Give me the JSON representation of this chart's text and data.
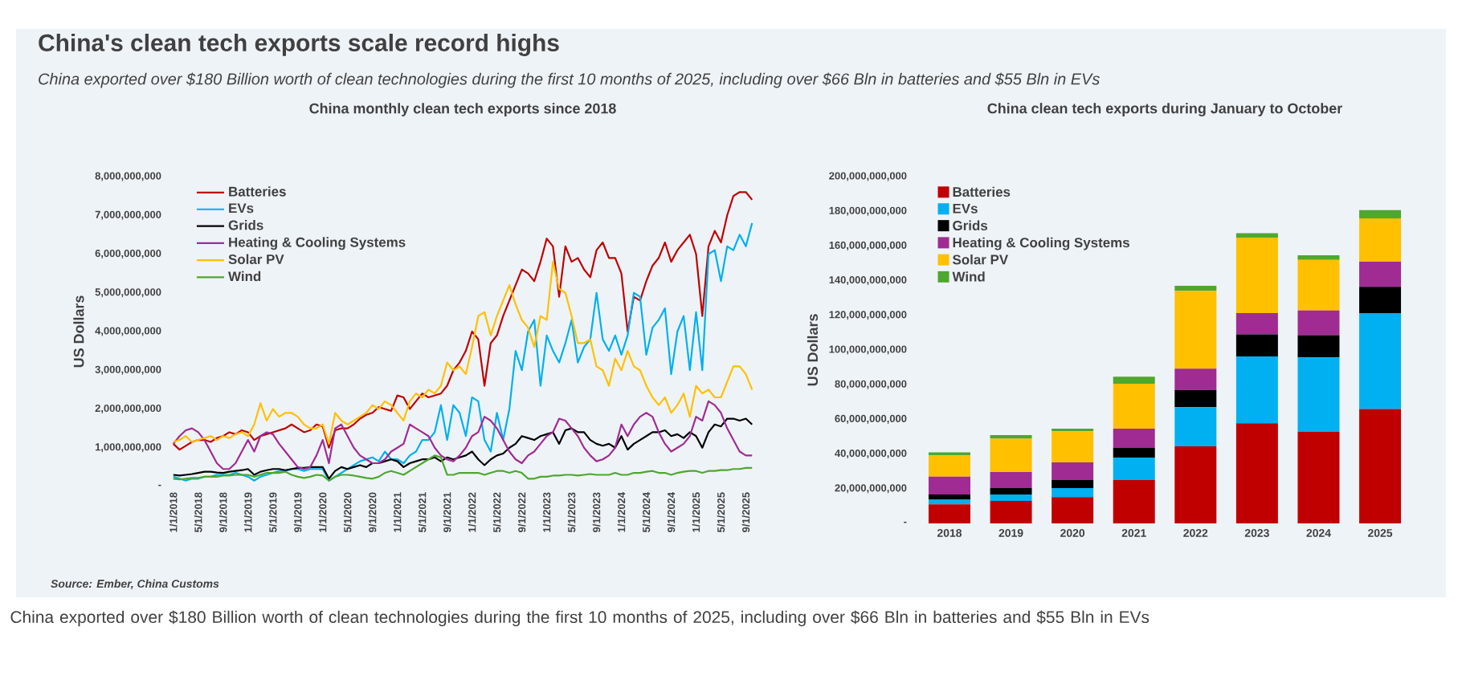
{
  "chart_data": [
    {
      "type": "line",
      "title": "China monthly clean tech exports since 2018",
      "ylabel": "US Dollars",
      "marker": "none",
      "legend": "top left",
      "annotations": [
        "China's clean tech exports scale record highs",
        "China exported over $180 Billion worth of clean technologies during the first 10 months of 2025, including over $66 Bln in batteries and $55 Bln in EVs",
        "Source:  Ember, China Customs",
        "China exported over $180 Billion worth of clean technologies during the first 10 months of 2025, including over $66 Bln in batteries and $55 Bln in EVs"
      ],
      "categories": [
        "1/1/2018",
        null,
        null,
        null,
        "5/1/2018",
        null,
        null,
        null,
        "9/1/2018",
        null,
        null,
        null,
        "1/1/2019",
        null,
        null,
        null,
        "5/1/2019",
        null,
        null,
        null,
        "9/1/2019",
        null,
        null,
        null,
        "1/1/2020",
        null,
        null,
        null,
        "5/1/2020",
        null,
        null,
        null,
        "9/1/2020",
        null,
        null,
        null,
        "1/1/2021",
        null,
        null,
        null,
        "5/1/2021",
        null,
        null,
        null,
        "9/1/2021",
        null,
        null,
        null,
        "1/1/2022",
        null,
        null,
        null,
        "5/1/2022",
        null,
        null,
        null,
        "9/1/2022",
        null,
        null,
        null,
        "1/1/2023",
        null,
        null,
        null,
        "5/1/2023",
        null,
        null,
        null,
        "9/1/2023",
        null,
        null,
        null,
        "1/1/2024",
        null,
        null,
        null,
        "5/1/2024",
        null,
        null,
        null,
        "9/1/2024",
        null,
        null,
        null,
        "1/1/2025",
        null,
        null,
        null,
        "5/1/2025",
        null,
        null,
        null,
        "9/1/2025",
        null
      ],
      "ylim": [
        0,
        8000000000.0
      ],
      "yticks": [
        {
          "value": 0,
          "label": "-"
        },
        {
          "value": 1000000000.0,
          "label": "1,000,000,000"
        },
        {
          "value": 2000000000.0,
          "label": "2,000,000,000"
        },
        {
          "value": 3000000000.0,
          "label": "3,000,000,000"
        },
        {
          "value": 4000000000.0,
          "label": "4,000,000,000"
        },
        {
          "value": 5000000000.0,
          "label": "5,000,000,000"
        },
        {
          "value": 6000000000.0,
          "label": "6,000,000,000"
        },
        {
          "value": 7000000000.0,
          "label": "7,000,000,000"
        },
        {
          "value": 8000000000.0,
          "label": "8,000,000,000"
        }
      ],
      "series": [
        {
          "name": "Batteries",
          "color": "#c00000",
          "values": [
            1100000000.0,
            950000000.0,
            1050000000.0,
            1150000000.0,
            1200000000.0,
            1200000000.0,
            1150000000.0,
            1250000000.0,
            1300000000.0,
            1400000000.0,
            1350000000.0,
            1450000000.0,
            1400000000.0,
            1200000000.0,
            1300000000.0,
            1350000000.0,
            1400000000.0,
            1450000000.0,
            1500000000.0,
            1600000000.0,
            1500000000.0,
            1400000000.0,
            1450000000.0,
            1600000000.0,
            1550000000.0,
            1000000000.0,
            1450000000.0,
            1500000000.0,
            1500000000.0,
            1600000000.0,
            1750000000.0,
            1850000000.0,
            1900000000.0,
            2050000000.0,
            2000000000.0,
            1950000000.0,
            2350000000.0,
            2300000000.0,
            2000000000.0,
            2200000000.0,
            2400000000.0,
            2300000000.0,
            2350000000.0,
            2400000000.0,
            2600000000.0,
            3000000000.0,
            3200000000.0,
            3500000000.0,
            4000000000.0,
            3800000000.0,
            2600000000.0,
            3700000000.0,
            3900000000.0,
            4400000000.0,
            4800000000.0,
            5200000000.0,
            5600000000.0,
            5500000000.0,
            5300000000.0,
            5800000000.0,
            6400000000.0,
            6200000000.0,
            4900000000.0,
            6200000000.0,
            5800000000.0,
            5900000000.0,
            5600000000.0,
            5400000000.0,
            6100000000.0,
            6300000000.0,
            5900000000.0,
            5900000000.0,
            5500000000.0,
            4000000000.0,
            4900000000.0,
            4800000000.0,
            5300000000.0,
            5700000000.0,
            5900000000.0,
            6300000000.0,
            5800000000.0,
            6100000000.0,
            6300000000.0,
            6500000000.0,
            6000000000.0,
            4400000000.0,
            6200000000.0,
            6600000000.0,
            6300000000.0,
            7000000000.0,
            7500000000.0,
            7600000000.0,
            7600000000.0,
            7400000000.0
          ]
        },
        {
          "name": "EVs",
          "color": "#00b0f0",
          "values": [
            250000000.0,
            200000000.0,
            150000000.0,
            200000000.0,
            200000000.0,
            250000000.0,
            250000000.0,
            300000000.0,
            300000000.0,
            300000000.0,
            350000000.0,
            300000000.0,
            250000000.0,
            150000000.0,
            250000000.0,
            300000000.0,
            350000000.0,
            400000000.0,
            400000000.0,
            450000000.0,
            450000000.0,
            400000000.0,
            450000000.0,
            450000000.0,
            450000000.0,
            150000000.0,
            250000000.0,
            350000000.0,
            450000000.0,
            550000000.0,
            650000000.0,
            700000000.0,
            750000000.0,
            650000000.0,
            900000000.0,
            700000000.0,
            700000000.0,
            600000000.0,
            800000000.0,
            900000000.0,
            1200000000.0,
            1200000000.0,
            1400000000.0,
            2100000000.0,
            1200000000.0,
            2100000000.0,
            1900000000.0,
            1300000000.0,
            2300000000.0,
            2200000000.0,
            1200000000.0,
            900000000.0,
            1900000000.0,
            1200000000.0,
            2000000000.0,
            3500000000.0,
            3000000000.0,
            4000000000.0,
            4300000000.0,
            2600000000.0,
            3900000000.0,
            3500000000.0,
            3200000000.0,
            3700000000.0,
            4300000000.0,
            3200000000.0,
            3600000000.0,
            3800000000.0,
            5000000000.0,
            3800000000.0,
            3500000000.0,
            3900000000.0,
            3400000000.0,
            3900000000.0,
            5000000000.0,
            4900000000.0,
            3400000000.0,
            4100000000.0,
            4300000000.0,
            4600000000.0,
            2900000000.0,
            4000000000.0,
            4400000000.0,
            3000000000.0,
            4500000000.0,
            3000000000.0,
            6000000000.0,
            6100000000.0,
            5300000000.0,
            6200000000.0,
            6100000000.0,
            6500000000.0,
            6200000000.0,
            6800000000.0
          ]
        },
        {
          "name": "Grids",
          "color": "#000000",
          "values": [
            300000000.0,
            280000000.0,
            300000000.0,
            320000000.0,
            350000000.0,
            380000000.0,
            380000000.0,
            360000000.0,
            350000000.0,
            380000000.0,
            400000000.0,
            420000000.0,
            450000000.0,
            300000000.0,
            380000000.0,
            420000000.0,
            450000000.0,
            450000000.0,
            420000000.0,
            450000000.0,
            480000000.0,
            480000000.0,
            500000000.0,
            500000000.0,
            500000000.0,
            200000000.0,
            400000000.0,
            500000000.0,
            450000000.0,
            500000000.0,
            550000000.0,
            500000000.0,
            600000000.0,
            600000000.0,
            650000000.0,
            700000000.0,
            650000000.0,
            500000000.0,
            600000000.0,
            650000000.0,
            700000000.0,
            700000000.0,
            750000000.0,
            650000000.0,
            750000000.0,
            700000000.0,
            750000000.0,
            800000000.0,
            900000000.0,
            700000000.0,
            550000000.0,
            700000000.0,
            800000000.0,
            850000000.0,
            1000000000.0,
            1100000000.0,
            1300000000.0,
            1250000000.0,
            1200000000.0,
            1300000000.0,
            1350000000.0,
            1400000000.0,
            1100000000.0,
            1450000000.0,
            1500000000.0,
            1400000000.0,
            1400000000.0,
            1200000000.0,
            1100000000.0,
            1050000000.0,
            1100000000.0,
            1000000000.0,
            1300000000.0,
            950000000.0,
            1100000000.0,
            1200000000.0,
            1300000000.0,
            1400000000.0,
            1400000000.0,
            1450000000.0,
            1300000000.0,
            1350000000.0,
            1250000000.0,
            1400000000.0,
            1300000000.0,
            1000000000.0,
            1400000000.0,
            1600000000.0,
            1550000000.0,
            1750000000.0,
            1750000000.0,
            1700000000.0,
            1750000000.0,
            1600000000.0
          ]
        },
        {
          "name": "Heating & Cooling Systems",
          "color": "#a02b93",
          "values": [
            1100000000.0,
            1300000000.0,
            1450000000.0,
            1500000000.0,
            1400000000.0,
            1200000000.0,
            900000000.0,
            600000000.0,
            450000000.0,
            450000000.0,
            600000000.0,
            900000000.0,
            1200000000.0,
            900000000.0,
            1300000000.0,
            1400000000.0,
            1350000000.0,
            1100000000.0,
            900000000.0,
            700000000.0,
            500000000.0,
            450000000.0,
            500000000.0,
            800000000.0,
            1200000000.0,
            600000000.0,
            1500000000.0,
            1600000000.0,
            1300000000.0,
            1000000000.0,
            800000000.0,
            700000000.0,
            600000000.0,
            600000000.0,
            700000000.0,
            900000000.0,
            1000000000.0,
            1100000000.0,
            1600000000.0,
            1500000000.0,
            1400000000.0,
            1300000000.0,
            1000000000.0,
            800000000.0,
            700000000.0,
            650000000.0,
            800000000.0,
            1000000000.0,
            1300000000.0,
            1400000000.0,
            1800000000.0,
            1700000000.0,
            1500000000.0,
            1200000000.0,
            900000000.0,
            700000000.0,
            600000000.0,
            800000000.0,
            900000000.0,
            1100000000.0,
            1300000000.0,
            1400000000.0,
            1750000000.0,
            1700000000.0,
            1500000000.0,
            1300000000.0,
            1000000000.0,
            800000000.0,
            650000000.0,
            700000000.0,
            800000000.0,
            1000000000.0,
            1600000000.0,
            1300000000.0,
            1600000000.0,
            1800000000.0,
            1900000000.0,
            1800000000.0,
            1400000000.0,
            1100000000.0,
            900000000.0,
            1000000000.0,
            1100000000.0,
            1300000000.0,
            1800000000.0,
            1700000000.0,
            2200000000.0,
            2100000000.0,
            1900000000.0,
            1500000000.0,
            1200000000.0,
            900000000.0,
            800000000.0,
            800000000.0
          ]
        },
        {
          "name": "Solar PV",
          "color": "#ffc000",
          "values": [
            1150000000.0,
            1200000000.0,
            1300000000.0,
            1150000000.0,
            1200000000.0,
            1250000000.0,
            1300000000.0,
            1200000000.0,
            1300000000.0,
            1250000000.0,
            1350000000.0,
            1400000000.0,
            1300000000.0,
            1600000000.0,
            2150000000.0,
            1700000000.0,
            2000000000.0,
            1800000000.0,
            1900000000.0,
            1900000000.0,
            1800000000.0,
            1600000000.0,
            1500000000.0,
            1500000000.0,
            1600000000.0,
            1100000000.0,
            1900000000.0,
            1700000000.0,
            1600000000.0,
            1700000000.0,
            1800000000.0,
            1900000000.0,
            2100000000.0,
            2000000000.0,
            2200000000.0,
            2100000000.0,
            1900000000.0,
            1700000000.0,
            2200000000.0,
            2400000000.0,
            2300000000.0,
            2500000000.0,
            2400000000.0,
            2600000000.0,
            3200000000.0,
            3000000000.0,
            3100000000.0,
            2900000000.0,
            3600000000.0,
            4400000000.0,
            4500000000.0,
            3900000000.0,
            4400000000.0,
            4800000000.0,
            5200000000.0,
            4700000000.0,
            4300000000.0,
            4100000000.0,
            3600000000.0,
            4400000000.0,
            4300000000.0,
            5800000000.0,
            5100000000.0,
            5000000000.0,
            4400000000.0,
            3700000000.0,
            3700000000.0,
            3800000000.0,
            3100000000.0,
            3000000000.0,
            2600000000.0,
            3300000000.0,
            3000000000.0,
            3500000000.0,
            3100000000.0,
            3000000000.0,
            2600000000.0,
            2300000000.0,
            2100000000.0,
            2300000000.0,
            1900000000.0,
            2100000000.0,
            2400000000.0,
            1800000000.0,
            2600000000.0,
            2400000000.0,
            2500000000.0,
            2300000000.0,
            2300000000.0,
            2700000000.0,
            3100000000.0,
            3100000000.0,
            2900000000.0,
            2500000000.0
          ]
        },
        {
          "name": "Wind",
          "color": "#4ea72e",
          "values": [
            200000000.0,
            180000000.0,
            200000000.0,
            220000000.0,
            220000000.0,
            250000000.0,
            250000000.0,
            250000000.0,
            280000000.0,
            280000000.0,
            300000000.0,
            300000000.0,
            300000000.0,
            250000000.0,
            300000000.0,
            350000000.0,
            350000000.0,
            350000000.0,
            380000000.0,
            300000000.0,
            250000000.0,
            220000000.0,
            250000000.0,
            300000000.0,
            280000000.0,
            150000000.0,
            250000000.0,
            300000000.0,
            300000000.0,
            280000000.0,
            250000000.0,
            220000000.0,
            200000000.0,
            250000000.0,
            350000000.0,
            400000000.0,
            350000000.0,
            300000000.0,
            400000000.0,
            500000000.0,
            600000000.0,
            700000000.0,
            800000000.0,
            750000000.0,
            300000000.0,
            300000000.0,
            350000000.0,
            350000000.0,
            350000000.0,
            350000000.0,
            300000000.0,
            350000000.0,
            400000000.0,
            400000000.0,
            350000000.0,
            400000000.0,
            350000000.0,
            200000000.0,
            200000000.0,
            250000000.0,
            250000000.0,
            280000000.0,
            280000000.0,
            300000000.0,
            300000000.0,
            280000000.0,
            300000000.0,
            320000000.0,
            300000000.0,
            300000000.0,
            300000000.0,
            350000000.0,
            300000000.0,
            300000000.0,
            350000000.0,
            350000000.0,
            380000000.0,
            400000000.0,
            350000000.0,
            350000000.0,
            300000000.0,
            350000000.0,
            380000000.0,
            400000000.0,
            400000000.0,
            350000000.0,
            400000000.0,
            400000000.0,
            420000000.0,
            420000000.0,
            450000000.0,
            450000000.0,
            480000000.0,
            480000000.0
          ]
        }
      ]
    },
    {
      "type": "bar",
      "stacked": true,
      "title": "China clean tech exports during January to October",
      "ylabel": "US Dollars",
      "legend": "top left",
      "categories": [
        "2018",
        "2019",
        "2020",
        "2021",
        "2022",
        "2023",
        "2024",
        "2025"
      ],
      "ylim": [
        0,
        200000000000.0
      ],
      "yticks": [
        {
          "value": 0,
          "label": "-"
        },
        {
          "value": 20000000000.0,
          "label": "20,000,000,000"
        },
        {
          "value": 40000000000.0,
          "label": "40,000,000,000"
        },
        {
          "value": 60000000000.0,
          "label": "60,000,000,000"
        },
        {
          "value": 80000000000.0,
          "label": "80,000,000,000"
        },
        {
          "value": 100000000000.0,
          "label": "100,000,000,000"
        },
        {
          "value": 120000000000.0,
          "label": "120,000,000,000"
        },
        {
          "value": 140000000000.0,
          "label": "140,000,000,000"
        },
        {
          "value": 160000000000.0,
          "label": "160,000,000,000"
        },
        {
          "value": 180000000000.0,
          "label": "180,000,000,000"
        },
        {
          "value": 200000000000.0,
          "label": "200,000,000,000"
        }
      ],
      "series": [
        {
          "name": "Batteries",
          "color": "#c00000",
          "values": [
            11000000000.0,
            13000000000.0,
            15100000000.0,
            25000000000.0,
            44400000000.0,
            57700000000.0,
            52800000000.0,
            66000000000.0
          ]
        },
        {
          "name": "EVs",
          "color": "#00b0f0",
          "values": [
            2600000000.0,
            3700000000.0,
            5300000000.0,
            13000000000.0,
            22600000000.0,
            38600000000.0,
            42900000000.0,
            55000000000.0
          ]
        },
        {
          "name": "Grids",
          "color": "#000000",
          "values": [
            3100000000.0,
            3700000000.0,
            4600000000.0,
            5500000000.0,
            9900000000.0,
            12700000000.0,
            12900000000.0,
            15400000000.0
          ]
        },
        {
          "name": "Heating & Cooling Systems",
          "color": "#a02b93",
          "values": [
            10200000000.0,
            9200000000.0,
            10200000000.0,
            11100000000.0,
            12300000000.0,
            12300000000.0,
            14200000000.0,
            14500000000.0
          ]
        },
        {
          "name": "Solar PV",
          "color": "#ffc000",
          "values": [
            12300000000.0,
            19200000000.0,
            17900000000.0,
            26000000000.0,
            44800000000.0,
            43500000000.0,
            29100000000.0,
            25000000000.0
          ]
        },
        {
          "name": "Wind",
          "color": "#4ea72e",
          "values": [
            1800000000.0,
            2100000000.0,
            1500000000.0,
            4000000000.0,
            3000000000.0,
            2500000000.0,
            2700000000.0,
            4700000000.0
          ]
        }
      ]
    }
  ]
}
